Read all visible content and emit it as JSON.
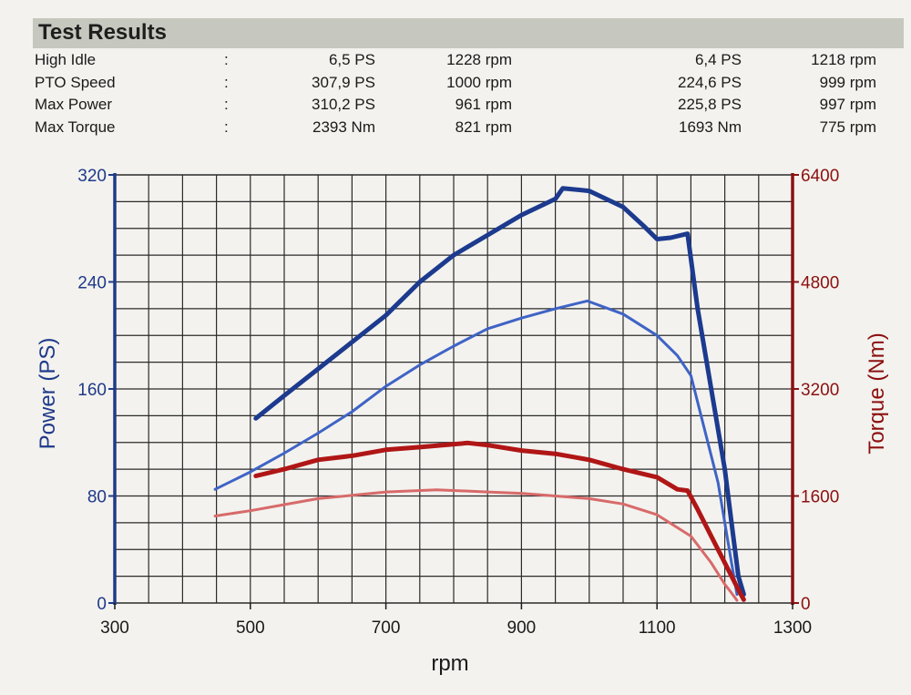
{
  "results": {
    "title": "Test Results",
    "rows": [
      {
        "label": "High Idle",
        "colon": ":",
        "v1": "6,5 PS",
        "r1": "1228 rpm",
        "v2": "6,4 PS",
        "r2": "1218 rpm"
      },
      {
        "label": "PTO Speed",
        "colon": ":",
        "v1": "307,9 PS",
        "r1": "1000 rpm",
        "v2": "224,6 PS",
        "r2": "999 rpm"
      },
      {
        "label": "Max Power",
        "colon": ":",
        "v1": "310,2 PS",
        "r1": "961 rpm",
        "v2": "225,8 PS",
        "r2": "997 rpm"
      },
      {
        "label": "Max Torque",
        "colon": ":",
        "v1": "2393 Nm",
        "r1": "821 rpm",
        "v2": "1693 Nm",
        "r2": "775 rpm"
      }
    ]
  },
  "chart_data": {
    "type": "line",
    "title": "",
    "xlabel": "rpm",
    "ylabel_left": "Power (PS)",
    "ylabel_right": "Torque (Nm)",
    "xlim": [
      300,
      1300
    ],
    "ylim_left": [
      0,
      320
    ],
    "ylim_right": [
      0,
      6400
    ],
    "xticks": [
      300,
      500,
      700,
      900,
      1100,
      1300
    ],
    "yticks_left": [
      0,
      80,
      160,
      240,
      320
    ],
    "yticks_right": [
      0,
      1600,
      3200,
      4800,
      6400
    ],
    "grid": true,
    "colors": {
      "left_axis": "#1f3a8a",
      "right_axis": "#8c1010",
      "grid": "#2b2b2b"
    },
    "series": [
      {
        "axis": "left",
        "color": "#1c3a8e",
        "width": 5,
        "x": [
          508,
          550,
          600,
          650,
          700,
          750,
          800,
          850,
          900,
          950,
          961,
          1000,
          1050,
          1080,
          1100,
          1120,
          1145,
          1160,
          1180,
          1200,
          1210,
          1220,
          1228
        ],
        "y": [
          138,
          155,
          175,
          195,
          215,
          240,
          260,
          275,
          290,
          302,
          310,
          308,
          296,
          282,
          272,
          273,
          276,
          220,
          160,
          100,
          60,
          20,
          6.5
        ]
      },
      {
        "axis": "left",
        "color": "#3f63c6",
        "width": 3,
        "x": [
          448,
          500,
          550,
          600,
          650,
          700,
          750,
          800,
          850,
          900,
          950,
          997,
          1050,
          1100,
          1130,
          1150,
          1170,
          1190,
          1200,
          1210,
          1218
        ],
        "y": [
          85,
          98,
          112,
          127,
          143,
          162,
          178,
          192,
          205,
          213,
          220,
          225.8,
          216,
          200,
          185,
          170,
          130,
          90,
          60,
          30,
          6.4
        ]
      },
      {
        "axis": "right",
        "color": "#b01616",
        "width": 5,
        "x": [
          508,
          550,
          600,
          650,
          700,
          750,
          821,
          850,
          900,
          950,
          1000,
          1050,
          1100,
          1130,
          1145,
          1160,
          1180,
          1200,
          1220,
          1228
        ],
        "y": [
          1900,
          2000,
          2140,
          2200,
          2290,
          2330,
          2393,
          2360,
          2280,
          2230,
          2140,
          2000,
          1880,
          1700,
          1680,
          1400,
          1000,
          600,
          200,
          50
        ]
      },
      {
        "axis": "right",
        "color": "#d86a6a",
        "width": 3,
        "x": [
          448,
          500,
          550,
          600,
          650,
          700,
          775,
          850,
          900,
          950,
          1000,
          1050,
          1100,
          1150,
          1180,
          1200,
          1210,
          1218
        ],
        "y": [
          1300,
          1380,
          1470,
          1560,
          1610,
          1660,
          1693,
          1660,
          1640,
          1600,
          1560,
          1480,
          1320,
          1000,
          600,
          280,
          150,
          40
        ]
      }
    ]
  }
}
